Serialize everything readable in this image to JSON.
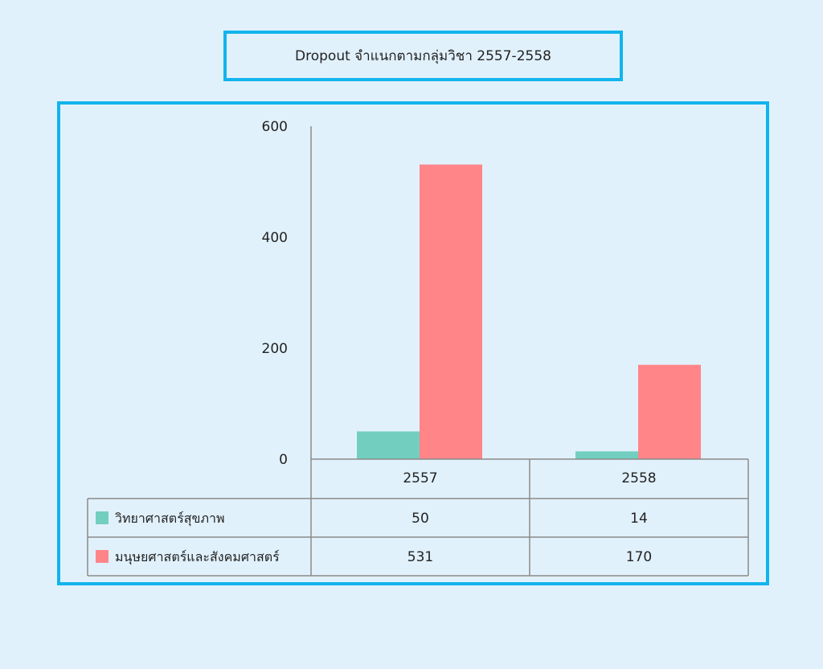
{
  "chart_data": {
    "type": "bar",
    "title": "Dropout  จำแนกตามกลุ่มวิชา 2557-2558",
    "categories": [
      "2557",
      "2558"
    ],
    "series": [
      {
        "name": "วิทยาศาสตร์สุขภาพ",
        "values": [
          50,
          14
        ],
        "color": "#72cfc0"
      },
      {
        "name": "มนุษยศาสตร์และสังคมศาสตร์",
        "values": [
          531,
          170
        ],
        "color": "#ff8589"
      }
    ],
    "ylim": [
      0,
      600
    ],
    "yticks": [
      0,
      200,
      400,
      600
    ],
    "legend": "data-table-below",
    "grid": false
  },
  "colors": {
    "frame": "#12b4ec",
    "background": "#e1f1fc",
    "axis": "#8a8a8a"
  }
}
